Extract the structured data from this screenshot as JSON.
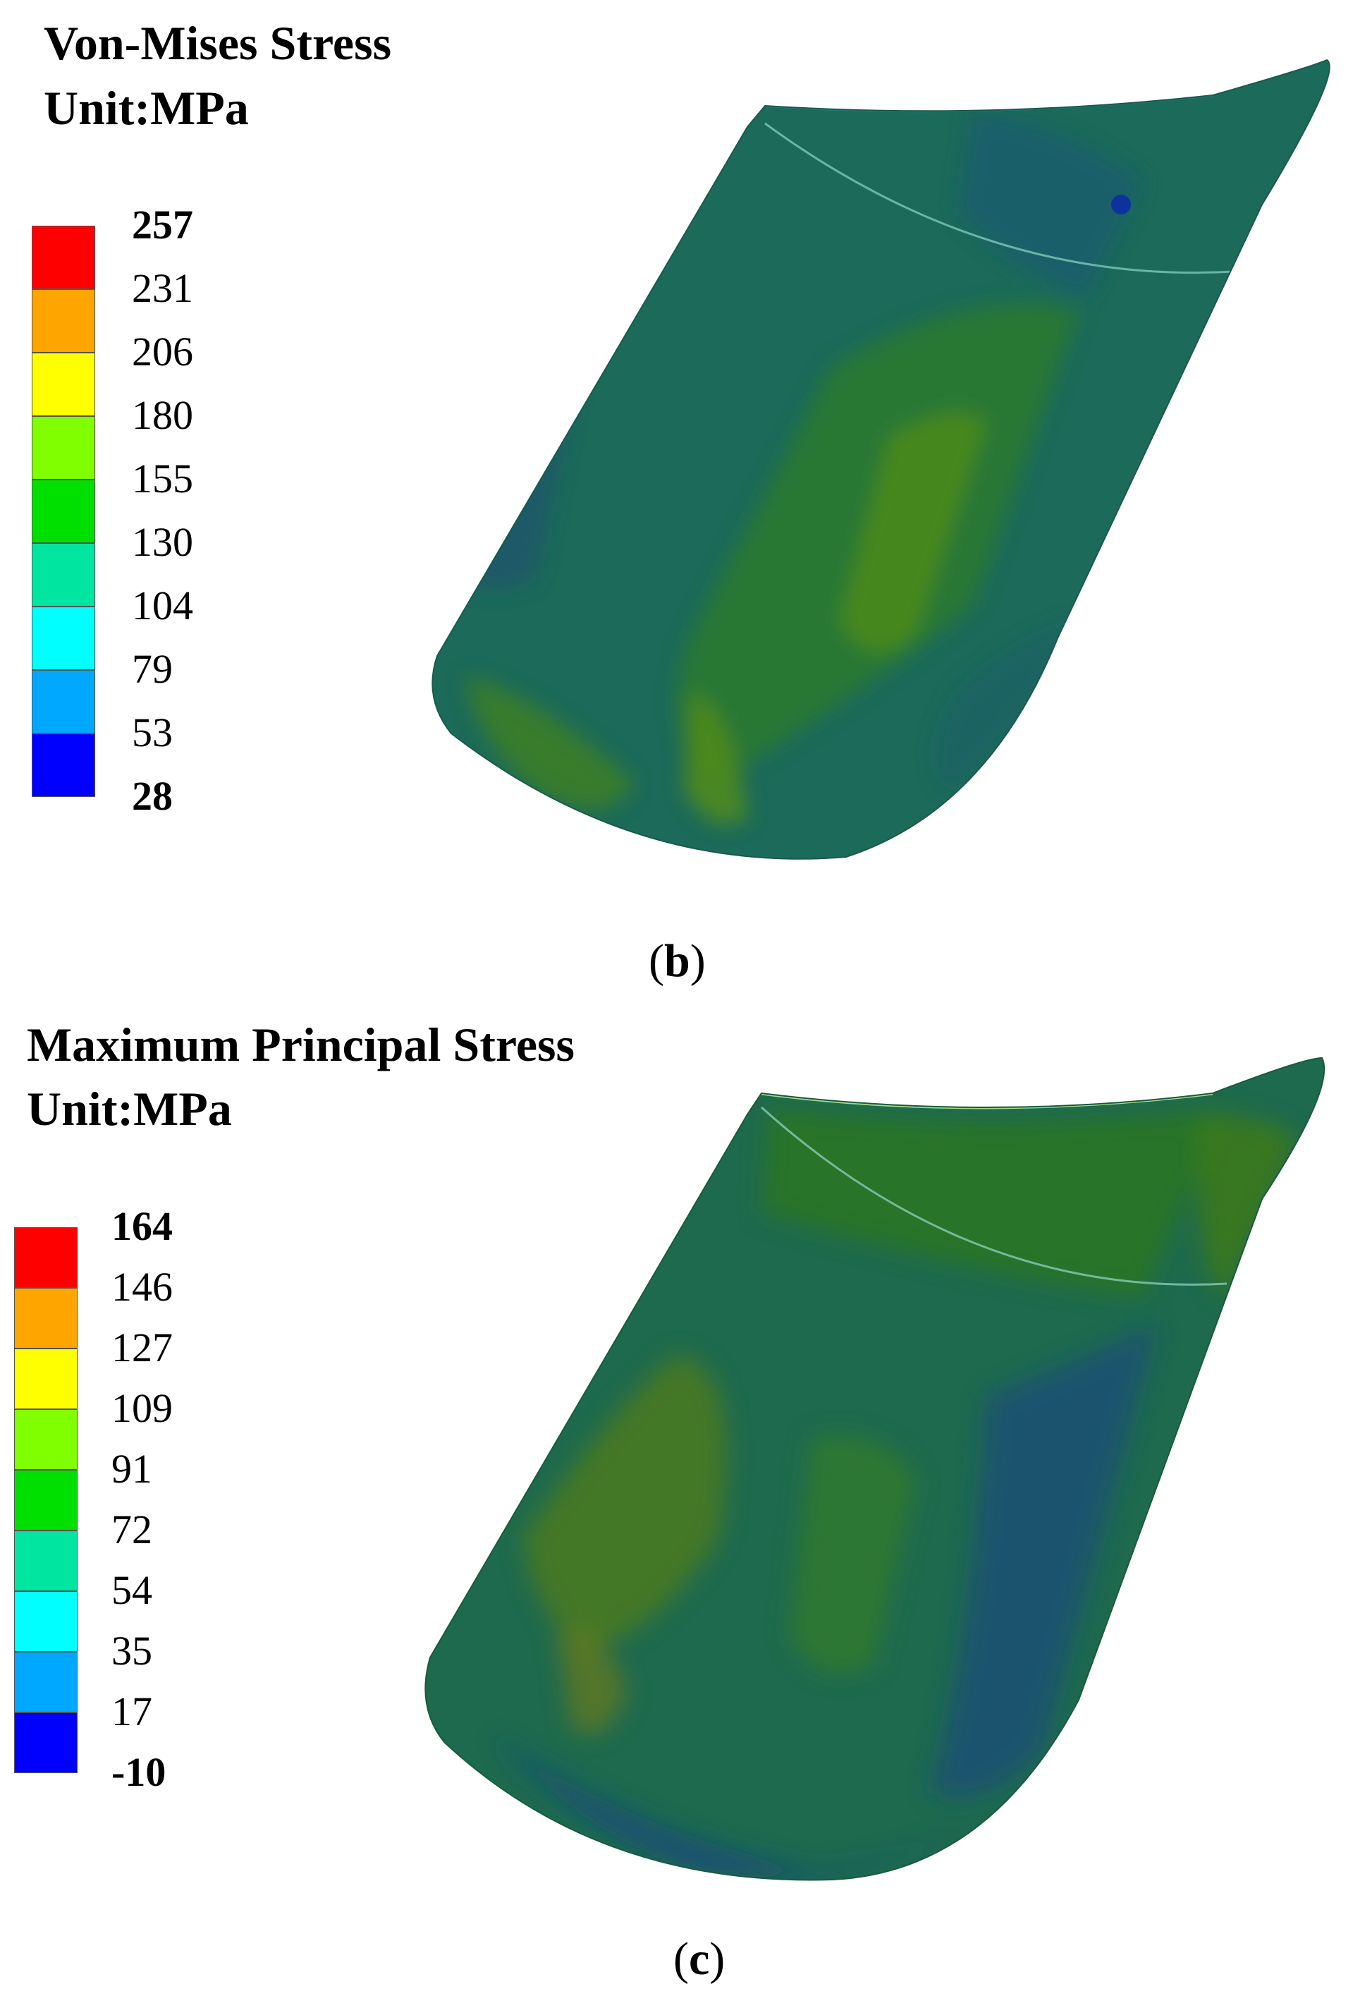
{
  "panels": [
    {
      "id": "b",
      "title": "Von-Mises  Stress",
      "unit": "Unit:MPa",
      "caption": "b",
      "legend": {
        "ticks": [
          "257",
          "231",
          "206",
          "180",
          "155",
          "130",
          "104",
          "79",
          "53",
          "28"
        ],
        "bold_ticks": [
          "257",
          "28"
        ],
        "colors": [
          "#ff0000",
          "#ffa500",
          "#ffff00",
          "#80ff00",
          "#00e000",
          "#00e6a0",
          "#00ffff",
          "#00a8ff",
          "#0000ff"
        ]
      }
    },
    {
      "id": "c",
      "title": "Maximum Principal Stress",
      "unit": "Unit:MPa",
      "caption": "c",
      "legend": {
        "ticks": [
          "164",
          "146",
          "127",
          "109",
          "91",
          "72",
          "54",
          "35",
          "17",
          "-10"
        ],
        "bold_ticks": [
          "164",
          "-10"
        ],
        "colors": [
          "#ff0000",
          "#ffa500",
          "#ffff00",
          "#80ff00",
          "#00e000",
          "#00e6a0",
          "#00ffff",
          "#00a8ff",
          "#0000ff"
        ]
      }
    }
  ]
}
